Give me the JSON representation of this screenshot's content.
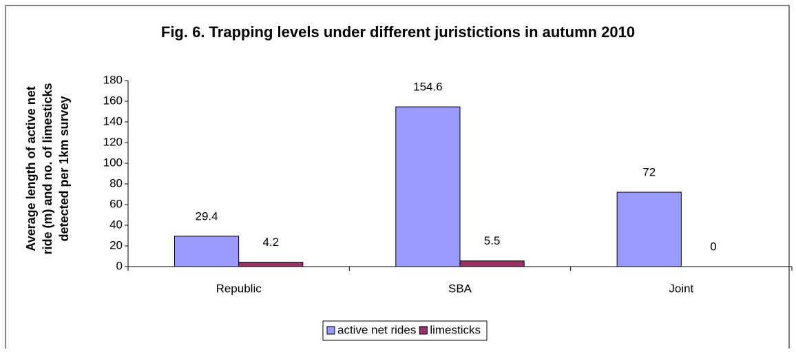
{
  "chart_data": {
    "type": "bar",
    "title": "Fig. 6. Trapping levels under different juristictions in autumn 2010",
    "y_label": [
      "Average length of active net",
      "ride (m) and no. of limesticks",
      "detected per 1km survey"
    ],
    "categories": [
      "Republic",
      "SBA",
      "Joint"
    ],
    "series": [
      {
        "name": "active net rides",
        "color": "#9999ff",
        "values": [
          29.4,
          154.6,
          72
        ]
      },
      {
        "name": "limesticks",
        "color": "#993366",
        "values": [
          4.2,
          5.5,
          0
        ]
      }
    ],
    "ylim": [
      0,
      180
    ],
    "yticks": [
      0,
      20,
      40,
      60,
      80,
      100,
      120,
      140,
      160,
      180
    ],
    "legend": "bottom"
  }
}
